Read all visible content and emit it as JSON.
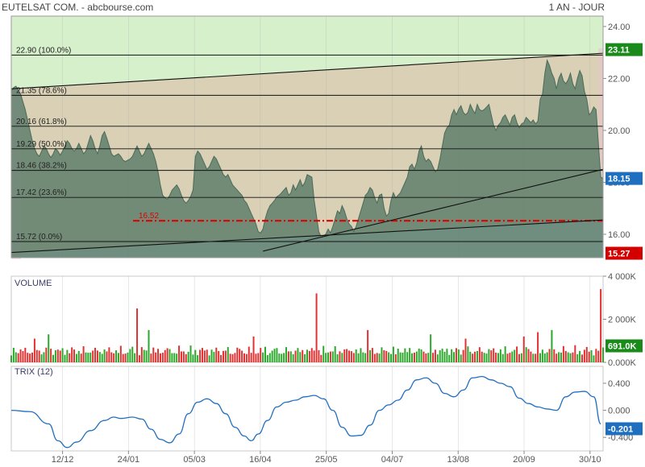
{
  "header": {
    "title": "EUTELSAT COM. - abcbourse.com",
    "period": "1 AN - JOUR"
  },
  "x_tick_labels": [
    "12/12",
    "24/01",
    "05/03",
    "16/04",
    "25/05",
    "04/07",
    "13/08",
    "20/09",
    "30/10"
  ],
  "colors": {
    "price_fill": "#5f7f6c",
    "price_line": "#4a6b58",
    "zone_bottom": "#cfe0ee",
    "zone_mid": "#d9d0b5",
    "zone_top": "#d7f0cc",
    "zone_left": "#e8c5ca",
    "red_level": "#e00000",
    "badge_green": "#1a8a1a",
    "badge_blue": "#1f6fc0",
    "badge_red": "#d40000",
    "vol_up": "#2aa82a",
    "vol_down": "#e03030",
    "trix_line": "#1f6fc0"
  },
  "chart_data": [
    {
      "type": "line",
      "panel": "price",
      "ylim": [
        15.1,
        24.4
      ],
      "y_ticks": [
        {
          "value": 24.0,
          "label": "24.00"
        },
        {
          "value": 22.0,
          "label": "22.00"
        },
        {
          "value": 20.0,
          "label": "20.00"
        },
        {
          "value": 18.0,
          "label": "18.00"
        },
        {
          "value": 16.0,
          "label": "16.00"
        }
      ],
      "fibonacci_levels": [
        {
          "value": 22.9,
          "label": "22.90",
          "pct": "(100.0%)"
        },
        {
          "value": 21.35,
          "label": "21.35",
          "pct": "(78.6%)"
        },
        {
          "value": 20.16,
          "label": "20.16",
          "pct": "(61.8%)"
        },
        {
          "value": 19.29,
          "label": "19.29",
          "pct": "(50.0%)"
        },
        {
          "value": 18.46,
          "label": "18.46",
          "pct": "(38.2%)"
        },
        {
          "value": 17.42,
          "label": "17.42",
          "pct": "(23.6%)"
        },
        {
          "value": 15.72,
          "label": "15.72",
          "pct": "(0.0%)"
        }
      ],
      "support_level": {
        "value": 16.52,
        "label": "16.52"
      },
      "badges": [
        {
          "value": 23.11,
          "label": "23.11",
          "color": "green"
        },
        {
          "value": 18.15,
          "label": "18.15",
          "color": "blue"
        },
        {
          "value": 15.27,
          "label": "15.27",
          "color": "red"
        }
      ],
      "trend_lines": [
        {
          "from": [
            0,
            21.6
          ],
          "to": [
            254,
            22.97
          ]
        },
        {
          "from": [
            0,
            15.3
          ],
          "to": [
            254,
            16.55
          ]
        },
        {
          "from": [
            108,
            15.35
          ],
          "to": [
            254,
            18.5
          ]
        }
      ],
      "close": [
        21.5,
        21.65,
        21.7,
        21.55,
        21.4,
        21.1,
        20.8,
        20.4,
        20.0,
        19.6,
        19.3,
        19.1,
        19.0,
        19.2,
        19.4,
        19.3,
        19.1,
        18.95,
        19.1,
        19.3,
        19.2,
        19.05,
        19.2,
        19.4,
        19.6,
        19.5,
        19.3,
        19.2,
        19.3,
        19.5,
        19.3,
        19.1,
        19.2,
        19.5,
        19.8,
        19.6,
        19.3,
        19.1,
        19.4,
        19.8,
        19.95,
        19.7,
        19.4,
        19.1,
        19.0,
        19.05,
        19.1,
        19.0,
        18.85,
        18.8,
        18.85,
        18.9,
        19.0,
        19.2,
        19.4,
        19.2,
        19.0,
        19.1,
        19.3,
        19.5,
        19.3,
        19.1,
        18.8,
        18.4,
        17.9,
        17.5,
        17.4,
        17.35,
        17.5,
        17.7,
        17.8,
        17.9,
        17.75,
        17.5,
        17.3,
        17.2,
        17.3,
        17.45,
        17.7,
        19.0,
        19.2,
        19.1,
        18.9,
        18.7,
        18.5,
        18.6,
        18.8,
        19.0,
        18.9,
        18.7,
        18.5,
        18.3,
        18.2,
        18.3,
        18.1,
        17.9,
        17.8,
        17.7,
        17.6,
        17.5,
        17.3,
        17.2,
        17.0,
        16.8,
        16.6,
        16.4,
        16.1,
        16.05,
        16.2,
        16.6,
        16.9,
        17.1,
        17.2,
        17.3,
        17.45,
        17.5,
        17.6,
        17.7,
        17.8,
        17.5,
        17.6,
        17.9,
        17.7,
        17.9,
        18.1,
        17.85,
        18.0,
        18.3,
        18.25,
        18.2,
        17.3,
        16.7,
        16.1,
        15.9,
        15.95,
        16.0,
        16.2,
        16.05,
        16.3,
        16.6,
        16.9,
        16.8,
        17.1,
        16.9,
        16.6,
        16.4,
        16.3,
        16.1,
        16.3,
        16.6,
        16.9,
        17.2,
        17.5,
        17.6,
        17.8,
        17.7,
        17.4,
        17.2,
        17.5,
        17.55,
        17.0,
        16.7,
        16.8,
        17.3,
        17.6,
        17.4,
        17.5,
        17.6,
        17.8,
        18.0,
        18.2,
        18.6,
        18.7,
        18.5,
        18.75,
        19.2,
        19.4,
        19.0,
        18.8,
        18.9,
        18.8,
        18.6,
        18.4,
        18.5,
        18.9,
        19.4,
        19.9,
        20.1,
        20.2,
        20.6,
        20.8,
        20.6,
        20.8,
        20.95,
        20.7,
        20.6,
        20.7,
        21.0,
        20.8,
        20.65,
        21.0,
        20.8,
        20.75,
        20.8,
        20.9,
        21.0,
        20.6,
        20.2,
        20.0,
        20.2,
        20.3,
        20.5,
        20.6,
        20.4,
        20.2,
        20.5,
        20.6,
        20.3,
        20.1,
        20.25,
        20.3,
        20.5,
        20.4,
        20.3,
        20.4,
        20.25,
        20.35,
        21.2,
        21.4,
        22.2,
        22.7,
        22.5,
        22.2,
        22.0,
        21.6,
        22.0,
        22.2,
        21.9,
        21.8,
        21.95,
        22.2,
        21.8,
        21.6,
        22.0,
        22.3,
        22.1,
        21.5,
        21.2,
        20.6,
        20.7,
        20.9,
        20.8,
        19.5,
        18.2,
        18.15
      ]
    },
    {
      "type": "bar",
      "panel": "volume",
      "title": "VOLUME",
      "ylim": [
        0,
        4000
      ],
      "unit": "K",
      "y_ticks": [
        {
          "value": 4000,
          "label": "4 000K"
        },
        {
          "value": 2000,
          "label": "2 000K"
        },
        {
          "value": 0,
          "label": "0.000K"
        }
      ],
      "badge": {
        "value": 691,
        "label": "691.0K",
        "color": "green"
      },
      "spikes": [
        {
          "index": 10,
          "value": 1100,
          "dir": "down"
        },
        {
          "index": 16,
          "value": 1300,
          "dir": "up"
        },
        {
          "index": 54,
          "value": 2500,
          "dir": "down"
        },
        {
          "index": 59,
          "value": 1500,
          "dir": "up"
        },
        {
          "index": 104,
          "value": 1200,
          "dir": "down"
        },
        {
          "index": 131,
          "value": 3200,
          "dir": "down"
        },
        {
          "index": 153,
          "value": 1500,
          "dir": "down"
        },
        {
          "index": 180,
          "value": 1300,
          "dir": "up"
        },
        {
          "index": 195,
          "value": 1100,
          "dir": "down"
        },
        {
          "index": 220,
          "value": 1200,
          "dir": "down"
        },
        {
          "index": 226,
          "value": 1400,
          "dir": "down"
        },
        {
          "index": 232,
          "value": 1500,
          "dir": "up"
        },
        {
          "index": 253,
          "value": 3400,
          "dir": "down"
        }
      ]
    },
    {
      "type": "line",
      "panel": "trix",
      "title": "TRIX (12)",
      "ylim": [
        -0.6,
        0.65
      ],
      "y_ticks": [
        {
          "value": 0.4,
          "label": "0.400"
        },
        {
          "value": 0.0,
          "label": "0.000"
        },
        {
          "value": -0.4,
          "label": "-0.400"
        }
      ],
      "badge": {
        "value": -0.201,
        "label": "-0.201",
        "color": "blue"
      },
      "key_points": [
        [
          0,
          0.0
        ],
        [
          8,
          -0.02
        ],
        [
          16,
          -0.2
        ],
        [
          20,
          -0.45
        ],
        [
          24,
          -0.55
        ],
        [
          28,
          -0.47
        ],
        [
          34,
          -0.3
        ],
        [
          40,
          -0.15
        ],
        [
          44,
          -0.1
        ],
        [
          47,
          -0.12
        ],
        [
          52,
          -0.1
        ],
        [
          56,
          -0.13
        ],
        [
          60,
          -0.28
        ],
        [
          64,
          -0.43
        ],
        [
          68,
          -0.48
        ],
        [
          72,
          -0.35
        ],
        [
          76,
          -0.05
        ],
        [
          80,
          0.12
        ],
        [
          84,
          0.17
        ],
        [
          88,
          0.1
        ],
        [
          92,
          -0.05
        ],
        [
          96,
          -0.25
        ],
        [
          100,
          -0.38
        ],
        [
          103,
          -0.45
        ],
        [
          106,
          -0.35
        ],
        [
          110,
          -0.15
        ],
        [
          114,
          0.05
        ],
        [
          118,
          0.12
        ],
        [
          122,
          0.15
        ],
        [
          126,
          0.2
        ],
        [
          130,
          0.22
        ],
        [
          134,
          0.17
        ],
        [
          138,
          0.0
        ],
        [
          142,
          -0.25
        ],
        [
          146,
          -0.38
        ],
        [
          150,
          -0.37
        ],
        [
          154,
          -0.22
        ],
        [
          158,
          0.0
        ],
        [
          162,
          0.08
        ],
        [
          166,
          0.15
        ],
        [
          170,
          0.3
        ],
        [
          174,
          0.45
        ],
        [
          178,
          0.48
        ],
        [
          182,
          0.4
        ],
        [
          186,
          0.25
        ],
        [
          190,
          0.2
        ],
        [
          194,
          0.3
        ],
        [
          198,
          0.48
        ],
        [
          202,
          0.5
        ],
        [
          206,
          0.45
        ],
        [
          210,
          0.4
        ],
        [
          214,
          0.35
        ],
        [
          218,
          0.18
        ],
        [
          222,
          0.1
        ],
        [
          226,
          0.05
        ],
        [
          230,
          0.02
        ],
        [
          234,
          0.0
        ],
        [
          238,
          0.2
        ],
        [
          242,
          0.27
        ],
        [
          246,
          0.28
        ],
        [
          250,
          0.2
        ],
        [
          253,
          -0.201
        ]
      ]
    }
  ]
}
